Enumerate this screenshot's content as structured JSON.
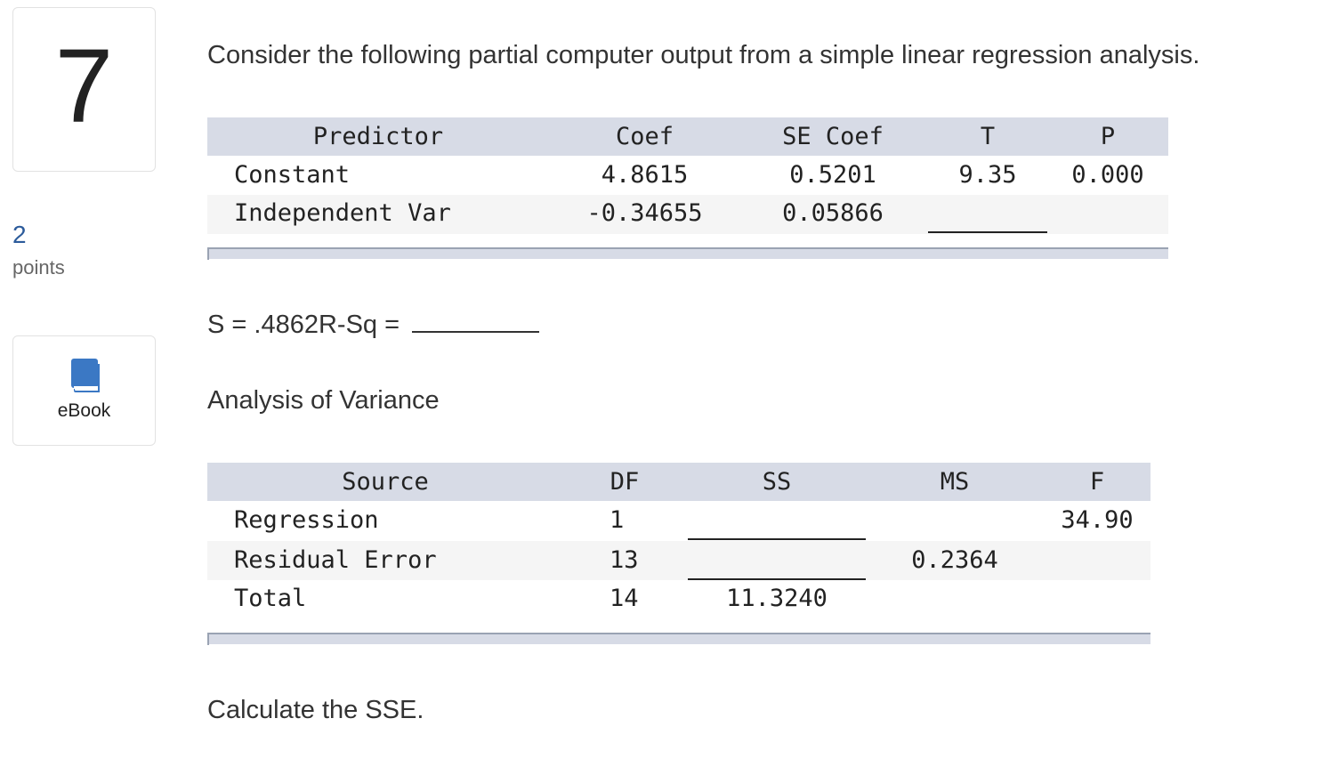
{
  "question": {
    "number": "7",
    "points_value": "2",
    "points_label": "points",
    "ebook_label": "eBook",
    "ebook_icon": "book-icon",
    "prompt": "Consider the following partial computer output from a simple linear regression analysis.",
    "s_line": "S = .4862R-Sq = ",
    "anova_title": "Analysis of Variance",
    "task": "Calculate the SSE."
  },
  "regression_table": {
    "headers": [
      "Predictor",
      "Coef",
      "SE Coef",
      "T",
      "P"
    ],
    "rows": [
      [
        "Constant",
        "4.8615",
        "0.5201",
        "9.35",
        "0.000"
      ],
      [
        "Independent Var",
        "-0.34655",
        "0.05866",
        "",
        ""
      ]
    ]
  },
  "anova_table": {
    "headers": [
      "Source",
      "DF",
      "SS",
      "MS",
      "F"
    ],
    "rows": [
      [
        "Regression",
        "1",
        "",
        "",
        "34.90"
      ],
      [
        "Residual Error",
        "13",
        "",
        "0.2364",
        ""
      ],
      [
        "Total",
        "14",
        "11.3240",
        "",
        ""
      ]
    ]
  },
  "colors": {
    "header_bg": "#d7dbe6",
    "alt_row_bg": "#f5f5f5",
    "points_blue": "#2c5b9b",
    "book_blue": "#3b78c4"
  }
}
